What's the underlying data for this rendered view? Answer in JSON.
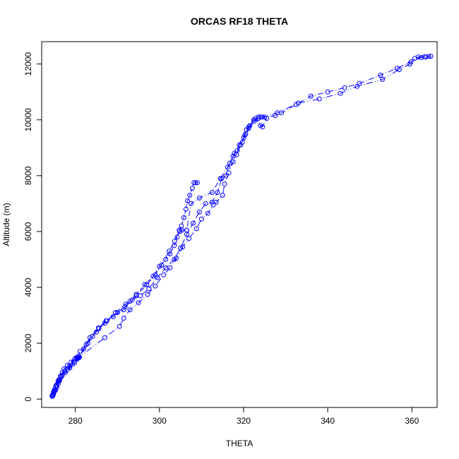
{
  "chart_data": {
    "type": "line",
    "title": "ORCAS RF18 THETA",
    "xlabel": "THETA",
    "ylabel": "Altitude (m)",
    "xlim": [
      272,
      366
    ],
    "ylim": [
      -300,
      12800
    ],
    "xticks": [
      280,
      300,
      320,
      340,
      360
    ],
    "yticks": [
      0,
      2000,
      4000,
      6000,
      8000,
      10000,
      12000
    ],
    "grid": false,
    "color": "#0000ff",
    "series": [
      {
        "marker": "open-circle",
        "line": "dashed",
        "points": [
          [
            274.5,
            120
          ],
          [
            274.8,
            180
          ],
          [
            275.0,
            260
          ],
          [
            275.3,
            330
          ],
          [
            275.6,
            420
          ],
          [
            276.0,
            560
          ],
          [
            276.3,
            700
          ],
          [
            276.5,
            820
          ],
          [
            276.9,
            950
          ],
          [
            277.3,
            1080
          ],
          [
            278.1,
            1210
          ],
          [
            279.0,
            1320
          ],
          [
            279.9,
            1450
          ],
          [
            280.6,
            1520
          ],
          [
            280.9,
            1480
          ],
          [
            280.4,
            1430
          ],
          [
            281.1,
            1700
          ],
          [
            282.6,
            1950
          ],
          [
            284.1,
            2250
          ],
          [
            285.6,
            2520
          ],
          [
            287.0,
            2720
          ],
          [
            289.0,
            2950
          ],
          [
            291.5,
            3200
          ],
          [
            293.0,
            3500
          ],
          [
            294.5,
            3750
          ],
          [
            296.5,
            4100
          ],
          [
            298.5,
            4400
          ],
          [
            300.0,
            4750
          ],
          [
            301.5,
            5000
          ],
          [
            302.5,
            5200
          ],
          [
            303.5,
            5500
          ],
          [
            304.2,
            5800
          ],
          [
            304.8,
            6000
          ],
          [
            305.2,
            6200
          ],
          [
            305.8,
            6500
          ],
          [
            306.3,
            6800
          ],
          [
            306.7,
            7100
          ],
          [
            307.2,
            7300
          ],
          [
            307.8,
            7550
          ],
          [
            308.2,
            7750
          ],
          [
            308.6,
            7750
          ],
          [
            309.0,
            7750
          ]
        ]
      },
      {
        "marker": "open-circle",
        "line": "dash-dot",
        "points": [
          [
            274.6,
            150
          ],
          [
            275.0,
            330
          ],
          [
            275.5,
            500
          ],
          [
            276.0,
            680
          ],
          [
            276.6,
            830
          ],
          [
            277.5,
            1000
          ],
          [
            278.5,
            1150
          ],
          [
            279.6,
            1350
          ],
          [
            280.3,
            1480
          ],
          [
            281.0,
            1500
          ],
          [
            283.0,
            2000
          ],
          [
            285.0,
            2400
          ],
          [
            287.5,
            2800
          ],
          [
            289.5,
            3100
          ],
          [
            292.0,
            3400
          ],
          [
            294.5,
            3700
          ],
          [
            297.0,
            4100
          ],
          [
            299.0,
            4450
          ],
          [
            300.5,
            4800
          ],
          [
            302.3,
            5300
          ],
          [
            303.6,
            5650
          ],
          [
            304.7,
            6050
          ],
          [
            305.3,
            6050
          ],
          [
            306.5,
            6050
          ],
          [
            307.5,
            7000
          ],
          [
            309.5,
            7200
          ],
          [
            312.5,
            7400
          ],
          [
            314.5,
            7900
          ],
          [
            316.2,
            8300
          ],
          [
            317.5,
            8700
          ],
          [
            318.5,
            8900
          ],
          [
            319.7,
            9200
          ],
          [
            320.5,
            9500
          ],
          [
            321.3,
            9750
          ],
          [
            322.4,
            10000
          ],
          [
            323.5,
            10100
          ],
          [
            324.0,
            10100
          ],
          [
            325.0,
            10100
          ],
          [
            327.5,
            10150
          ],
          [
            329.0,
            10250
          ],
          [
            332.5,
            10550
          ],
          [
            336.0,
            10850
          ],
          [
            340.0,
            11000
          ],
          [
            344.0,
            11150
          ],
          [
            347.5,
            11300
          ],
          [
            352.5,
            11600
          ],
          [
            356.5,
            11850
          ],
          [
            359.8,
            12080
          ],
          [
            361.5,
            12250
          ],
          [
            363.0,
            12260
          ],
          [
            364.5,
            12280
          ]
        ]
      },
      {
        "marker": "open-circle",
        "line": "long-dash",
        "points": [
          [
            274.5,
            100
          ],
          [
            274.8,
            250
          ],
          [
            275.3,
            450
          ],
          [
            275.9,
            620
          ],
          [
            276.6,
            780
          ],
          [
            277.6,
            950
          ],
          [
            278.7,
            1120
          ],
          [
            279.8,
            1300
          ],
          [
            280.7,
            1480
          ],
          [
            282.0,
            1800
          ],
          [
            283.5,
            2200
          ],
          [
            285.5,
            2550
          ],
          [
            287.3,
            2800
          ],
          [
            290.0,
            3100
          ],
          [
            291.8,
            3300
          ],
          [
            293.5,
            3550
          ],
          [
            295.5,
            3700
          ],
          [
            297.5,
            3950
          ],
          [
            299.5,
            4350
          ],
          [
            301.5,
            4700
          ],
          [
            303.5,
            5000
          ],
          [
            305.0,
            5400
          ],
          [
            306.5,
            5900
          ],
          [
            308.0,
            6300
          ],
          [
            309.5,
            6700
          ],
          [
            311.0,
            7000
          ],
          [
            312.5,
            7050
          ],
          [
            313.8,
            7400
          ],
          [
            314.8,
            7900
          ],
          [
            315.8,
            8000
          ],
          [
            316.7,
            8450
          ],
          [
            317.8,
            8800
          ],
          [
            319.0,
            9100
          ],
          [
            320.0,
            9350
          ],
          [
            320.7,
            9650
          ],
          [
            321.5,
            9800
          ],
          [
            322.8,
            10050
          ],
          [
            324.0,
            9800
          ],
          [
            324.5,
            9750
          ],
          [
            325.5,
            10050
          ]
        ]
      },
      {
        "marker": "open-circle",
        "line": "dash-dot-dot",
        "points": [
          [
            274.7,
            130
          ],
          [
            275.1,
            300
          ],
          [
            275.6,
            480
          ],
          [
            276.2,
            650
          ],
          [
            276.9,
            850
          ],
          [
            278.1,
            1050
          ],
          [
            279.4,
            1250
          ],
          [
            280.5,
            1450
          ],
          [
            287.0,
            2200
          ],
          [
            290.5,
            2600
          ],
          [
            291.5,
            2900
          ],
          [
            293.0,
            3200
          ],
          [
            295.0,
            3450
          ],
          [
            297.2,
            3750
          ],
          [
            299.0,
            4050
          ],
          [
            301.0,
            4450
          ],
          [
            302.5,
            4700
          ],
          [
            304.0,
            5050
          ],
          [
            305.5,
            5450
          ],
          [
            307.0,
            5750
          ],
          [
            308.8,
            6100
          ],
          [
            310.0,
            6450
          ],
          [
            311.5,
            6650
          ],
          [
            312.8,
            6950
          ],
          [
            313.5,
            7050
          ],
          [
            315.0,
            7300
          ],
          [
            315.5,
            7700
          ],
          [
            316.5,
            8100
          ],
          [
            317.5,
            8500
          ],
          [
            318.3,
            8750
          ],
          [
            319.3,
            9100
          ],
          [
            320.3,
            9450
          ],
          [
            321.2,
            9700
          ],
          [
            322.5,
            9950
          ],
          [
            323.5,
            10050
          ],
          [
            324.4,
            10100
          ],
          [
            328.0,
            10250
          ],
          [
            333.0,
            10600
          ],
          [
            338.0,
            10750
          ],
          [
            343.0,
            10950
          ],
          [
            347.0,
            11200
          ],
          [
            353.0,
            11450
          ],
          [
            357.0,
            11800
          ],
          [
            359.5,
            12000
          ],
          [
            360.7,
            12200
          ],
          [
            362.2,
            12230
          ],
          [
            363.3,
            12250
          ],
          [
            364.0,
            12270
          ]
        ]
      }
    ]
  }
}
